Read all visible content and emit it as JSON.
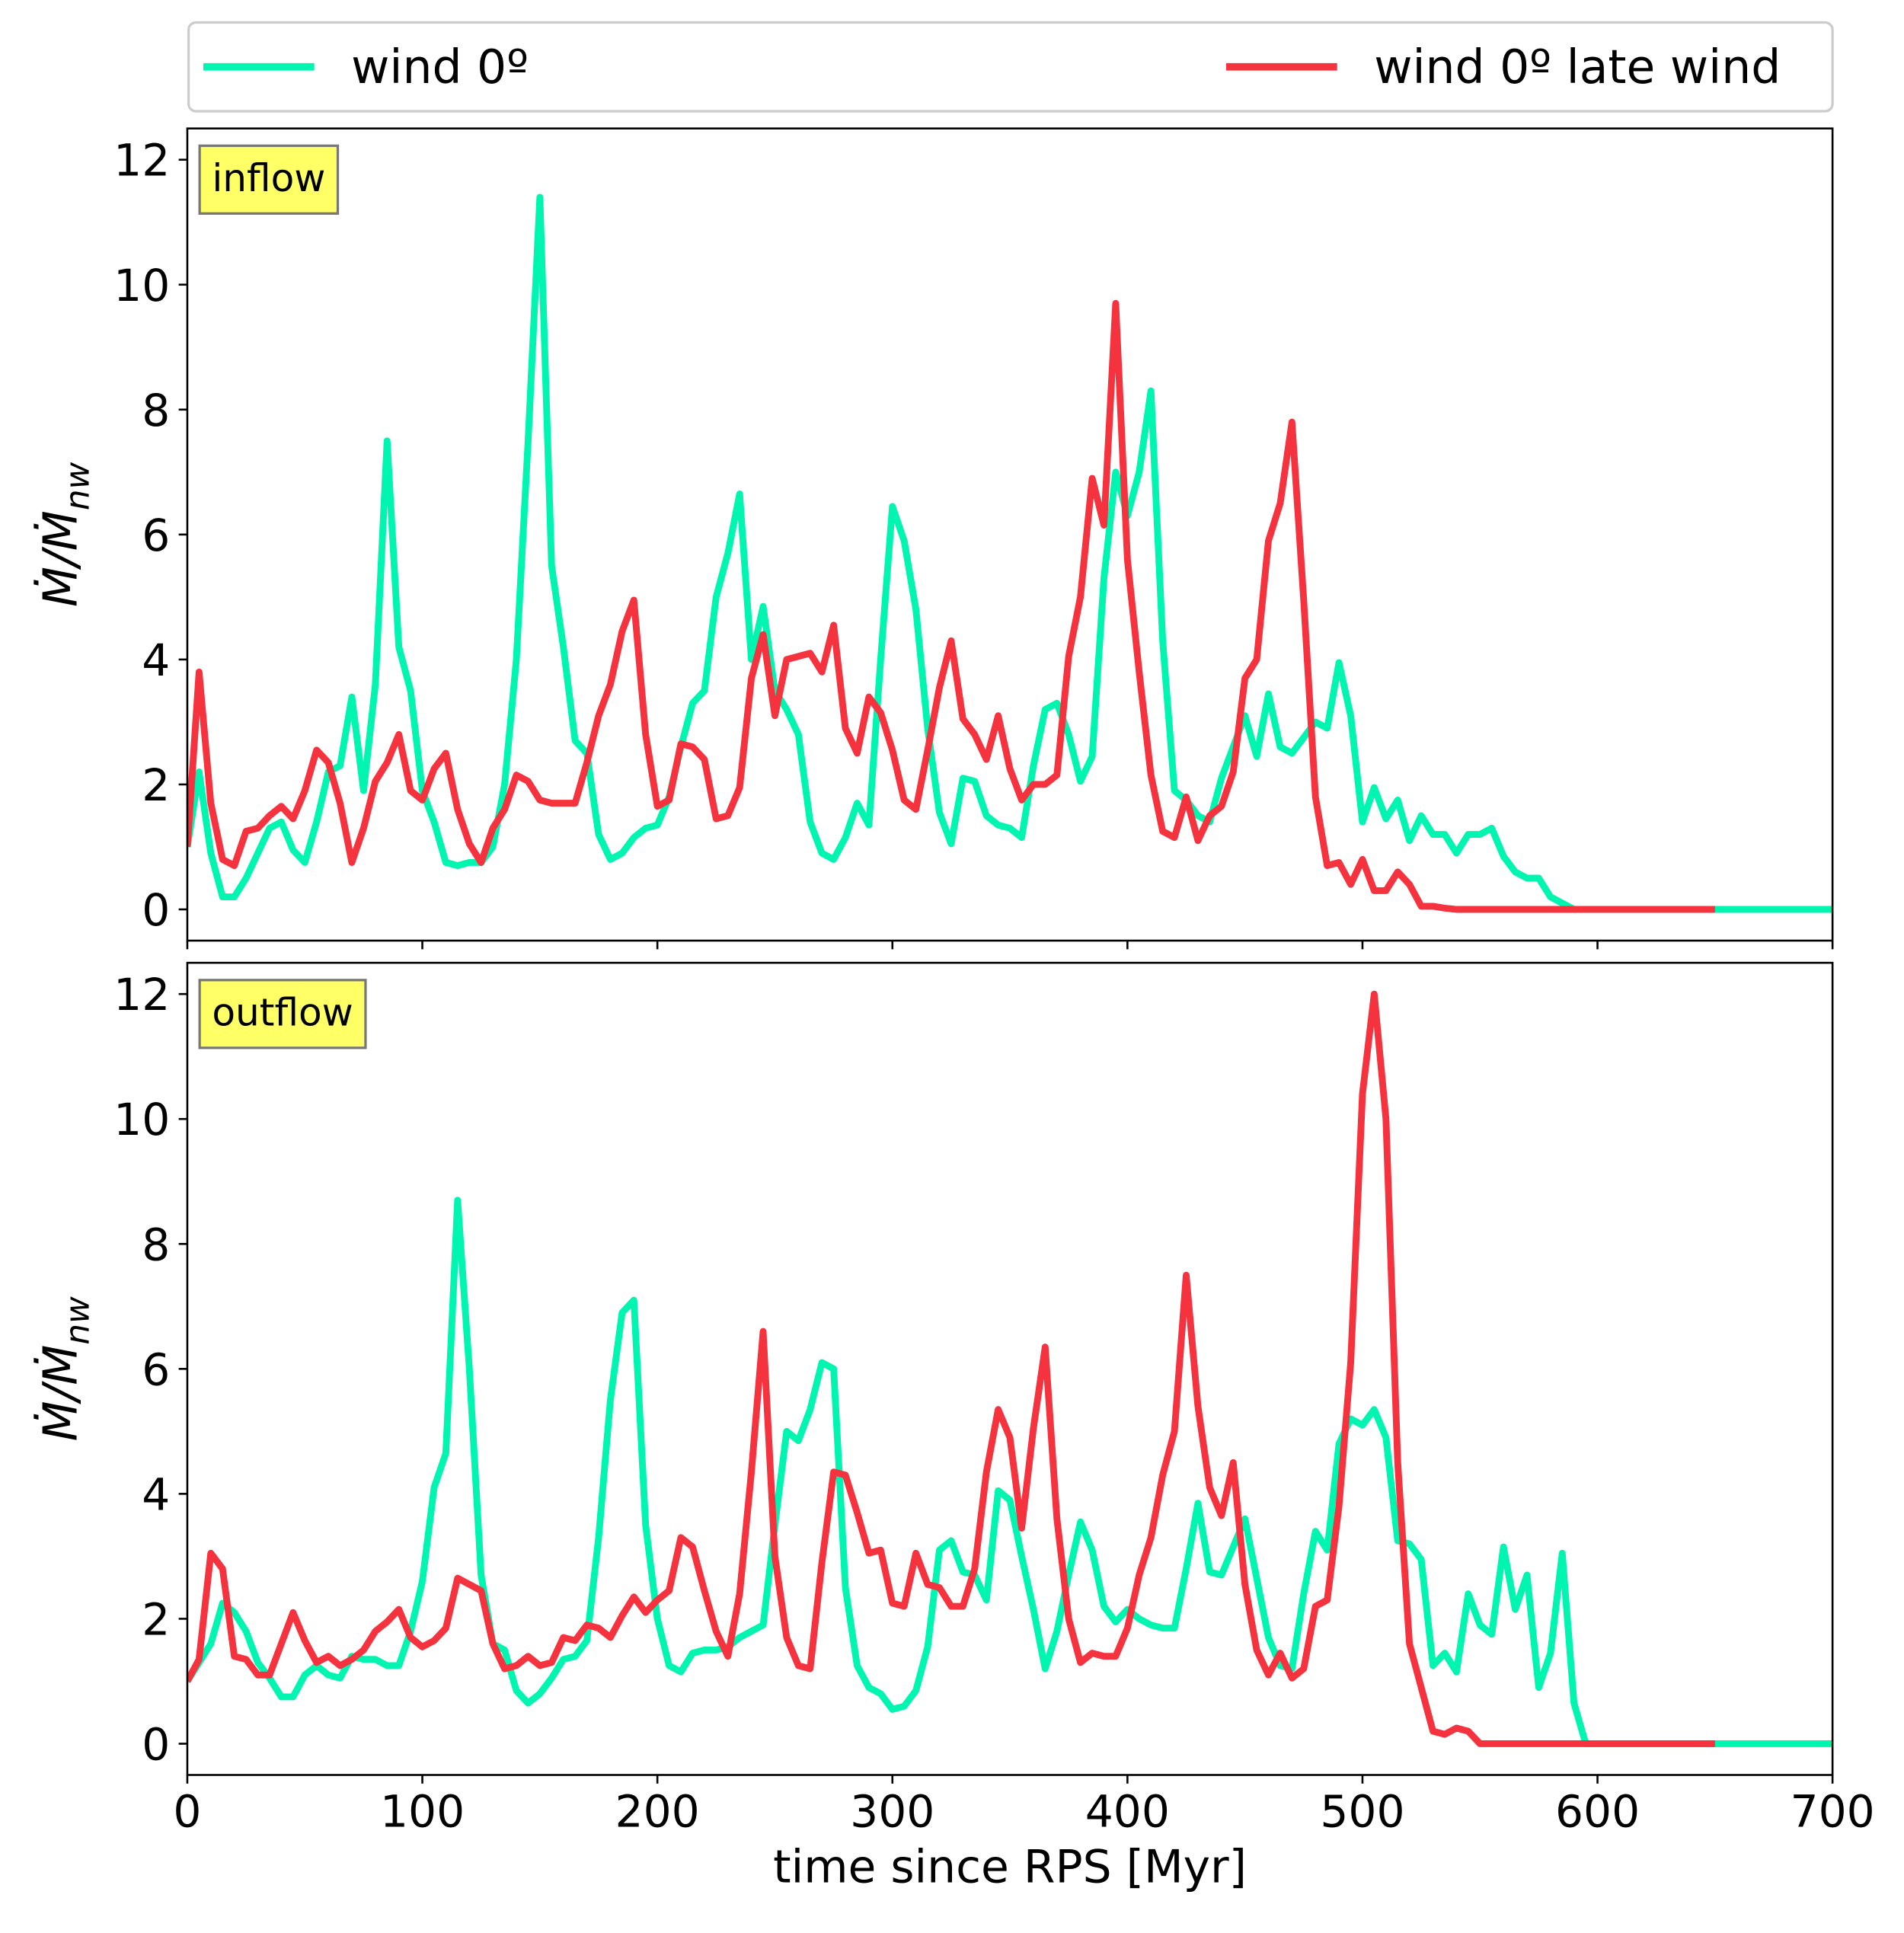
{
  "chart_data": [
    {
      "type": "line",
      "annotation": "inflow",
      "ylabel": {
        "main": "Ṁ/Ṁ",
        "sub": "nw"
      },
      "xlim": [
        0,
        700
      ],
      "xticks": [
        0,
        100,
        200,
        300,
        400,
        500,
        600,
        700
      ],
      "ylim": [
        -0.5,
        12.5
      ],
      "yticks": [
        0,
        2,
        4,
        6,
        8,
        10,
        12
      ],
      "legend": "top",
      "series": [
        {
          "name": "wind 0º",
          "color": "#00f5b0",
          "x": [
            0,
            5,
            10,
            15,
            20,
            25,
            30,
            35,
            40,
            45,
            50,
            55,
            60,
            65,
            70,
            75,
            80,
            85,
            90,
            95,
            100,
            105,
            110,
            115,
            120,
            125,
            130,
            135,
            140,
            145,
            150,
            155,
            160,
            165,
            170,
            175,
            180,
            185,
            190,
            195,
            200,
            205,
            210,
            215,
            220,
            225,
            230,
            235,
            240,
            245,
            250,
            255,
            260,
            265,
            270,
            275,
            280,
            285,
            290,
            295,
            300,
            305,
            310,
            315,
            320,
            325,
            330,
            335,
            340,
            345,
            350,
            355,
            360,
            365,
            370,
            375,
            380,
            385,
            390,
            395,
            400,
            405,
            410,
            415,
            420,
            425,
            430,
            435,
            440,
            445,
            450,
            455,
            460,
            465,
            470,
            475,
            480,
            485,
            490,
            495,
            500,
            505,
            510,
            515,
            520,
            525,
            530,
            535,
            540,
            545,
            550,
            555,
            560,
            565,
            570,
            575,
            580,
            585,
            590,
            700
          ],
          "values": [
            1.0,
            2.2,
            0.9,
            0.2,
            0.2,
            0.5,
            0.9,
            1.3,
            1.4,
            0.95,
            0.75,
            1.4,
            2.2,
            2.3,
            3.4,
            1.9,
            3.6,
            7.5,
            4.2,
            3.5,
            1.9,
            1.4,
            0.75,
            0.7,
            0.75,
            0.75,
            1.0,
            2.0,
            4.0,
            7.5,
            11.4,
            5.5,
            4.2,
            2.7,
            2.5,
            1.2,
            0.8,
            0.9,
            1.15,
            1.3,
            1.35,
            1.8,
            2.6,
            3.3,
            3.5,
            5.0,
            5.7,
            6.65,
            4.0,
            4.85,
            3.5,
            3.2,
            2.8,
            1.4,
            0.9,
            0.8,
            1.15,
            1.7,
            1.35,
            4.0,
            6.45,
            5.9,
            4.8,
            2.9,
            1.55,
            1.05,
            2.1,
            2.05,
            1.5,
            1.35,
            1.3,
            1.15,
            2.3,
            3.2,
            3.3,
            2.8,
            2.05,
            2.45,
            5.3,
            7.0,
            6.3,
            7.0,
            8.3,
            4.3,
            1.9,
            1.75,
            1.5,
            1.4,
            2.1,
            2.6,
            3.1,
            2.45,
            3.45,
            2.6,
            2.5,
            2.75,
            3.0,
            2.9,
            3.95,
            3.1,
            1.4,
            1.95,
            1.45,
            1.75,
            1.1,
            1.5,
            1.2,
            1.2,
            0.9,
            1.2,
            1.2,
            1.3,
            0.85,
            0.6,
            0.5,
            0.5,
            0.2,
            0.1,
            0.0,
            0.0
          ]
        },
        {
          "name": "wind 0º late wind",
          "color": "#f5333f",
          "x": [
            0,
            5,
            10,
            15,
            20,
            25,
            30,
            35,
            40,
            45,
            50,
            55,
            60,
            65,
            70,
            75,
            80,
            85,
            90,
            95,
            100,
            105,
            110,
            115,
            120,
            125,
            130,
            135,
            140,
            145,
            150,
            155,
            160,
            165,
            170,
            175,
            180,
            185,
            190,
            195,
            200,
            205,
            210,
            215,
            220,
            225,
            230,
            235,
            240,
            245,
            250,
            255,
            260,
            265,
            270,
            275,
            280,
            285,
            290,
            295,
            300,
            305,
            310,
            315,
            320,
            325,
            330,
            335,
            340,
            345,
            350,
            355,
            360,
            365,
            370,
            375,
            380,
            385,
            390,
            395,
            400,
            405,
            410,
            415,
            420,
            425,
            430,
            435,
            440,
            445,
            450,
            455,
            460,
            465,
            470,
            475,
            480,
            485,
            490,
            495,
            500,
            505,
            510,
            515,
            520,
            525,
            530,
            535,
            540,
            650
          ],
          "values": [
            1.0,
            3.8,
            1.7,
            0.8,
            0.7,
            1.25,
            1.3,
            1.5,
            1.65,
            1.45,
            1.9,
            2.55,
            2.35,
            1.7,
            0.75,
            1.3,
            2.05,
            2.35,
            2.8,
            1.9,
            1.75,
            2.25,
            2.5,
            1.6,
            1.05,
            0.75,
            1.3,
            1.6,
            2.15,
            2.05,
            1.75,
            1.7,
            1.7,
            1.7,
            2.35,
            3.1,
            3.6,
            4.45,
            4.95,
            2.8,
            1.65,
            1.75,
            2.65,
            2.6,
            2.4,
            1.45,
            1.5,
            1.95,
            3.7,
            4.4,
            3.1,
            4.0,
            4.05,
            4.1,
            3.8,
            4.55,
            2.9,
            2.5,
            3.4,
            3.15,
            2.55,
            1.75,
            1.6,
            2.55,
            3.55,
            4.3,
            3.05,
            2.8,
            2.4,
            3.1,
            2.25,
            1.75,
            2.0,
            2.0,
            2.15,
            4.05,
            5.0,
            6.9,
            6.15,
            9.7,
            5.6,
            3.8,
            2.15,
            1.25,
            1.15,
            1.8,
            1.1,
            1.5,
            1.65,
            2.2,
            3.7,
            4.0,
            5.9,
            6.5,
            7.8,
            4.95,
            1.8,
            0.7,
            0.75,
            0.4,
            0.8,
            0.3,
            0.3,
            0.6,
            0.4,
            0.05,
            0.05,
            0.02,
            0.0,
            0.0
          ]
        }
      ]
    },
    {
      "type": "line",
      "annotation": "outflow",
      "ylabel": {
        "main": "Ṁ/Ṁ",
        "sub": "nw"
      },
      "xlabel": "time since RPS [Myr]",
      "xlim": [
        0,
        700
      ],
      "xticks": [
        0,
        100,
        200,
        300,
        400,
        500,
        600,
        700
      ],
      "ylim": [
        -0.5,
        12.5
      ],
      "yticks": [
        0,
        2,
        4,
        6,
        8,
        10,
        12
      ],
      "series": [
        {
          "color": "#00f5b0",
          "x": [
            0,
            5,
            10,
            15,
            20,
            25,
            30,
            35,
            40,
            45,
            50,
            55,
            60,
            65,
            70,
            75,
            80,
            85,
            90,
            95,
            100,
            105,
            110,
            115,
            120,
            125,
            130,
            135,
            140,
            145,
            150,
            155,
            160,
            165,
            170,
            175,
            180,
            185,
            190,
            195,
            200,
            205,
            210,
            215,
            220,
            225,
            230,
            235,
            240,
            245,
            250,
            255,
            260,
            265,
            270,
            275,
            280,
            285,
            290,
            295,
            300,
            305,
            310,
            315,
            320,
            325,
            330,
            335,
            340,
            345,
            350,
            355,
            360,
            365,
            370,
            375,
            380,
            385,
            390,
            395,
            400,
            405,
            410,
            415,
            420,
            425,
            430,
            435,
            440,
            445,
            450,
            455,
            460,
            465,
            470,
            475,
            480,
            485,
            490,
            495,
            500,
            505,
            510,
            515,
            520,
            525,
            530,
            535,
            540,
            545,
            550,
            555,
            560,
            565,
            570,
            575,
            580,
            585,
            590,
            595,
            700
          ],
          "values": [
            1.0,
            1.3,
            1.6,
            2.25,
            2.1,
            1.8,
            1.3,
            1.05,
            0.75,
            0.75,
            1.1,
            1.25,
            1.1,
            1.05,
            1.4,
            1.35,
            1.35,
            1.25,
            1.25,
            1.8,
            2.6,
            4.1,
            4.65,
            8.7,
            6.0,
            2.7,
            1.6,
            1.5,
            0.85,
            0.65,
            0.8,
            1.05,
            1.35,
            1.4,
            1.65,
            3.3,
            5.5,
            6.9,
            7.1,
            3.5,
            2.0,
            1.25,
            1.15,
            1.45,
            1.5,
            1.5,
            1.55,
            1.7,
            1.8,
            1.9,
            3.5,
            5.0,
            4.85,
            5.35,
            6.1,
            6.0,
            2.5,
            1.25,
            0.9,
            0.8,
            0.55,
            0.6,
            0.85,
            1.55,
            3.1,
            3.25,
            2.75,
            2.7,
            2.3,
            4.05,
            3.9,
            3.0,
            2.15,
            1.2,
            1.8,
            2.7,
            3.55,
            3.1,
            2.2,
            1.95,
            2.15,
            2.0,
            1.9,
            1.85,
            1.85,
            2.8,
            3.85,
            2.75,
            2.7,
            3.15,
            3.6,
            2.65,
            1.7,
            1.25,
            1.2,
            2.4,
            3.4,
            3.1,
            4.8,
            5.2,
            5.1,
            5.35,
            4.9,
            3.25,
            3.2,
            2.95,
            1.25,
            1.45,
            1.15,
            2.4,
            1.9,
            1.75,
            3.15,
            2.15,
            2.7,
            0.9,
            1.45,
            3.05,
            0.65,
            0.0,
            0.0
          ]
        },
        {
          "color": "#f5333f",
          "x": [
            0,
            5,
            10,
            15,
            20,
            25,
            30,
            35,
            40,
            45,
            50,
            55,
            60,
            65,
            70,
            75,
            80,
            85,
            90,
            95,
            100,
            105,
            110,
            115,
            120,
            125,
            130,
            135,
            140,
            145,
            150,
            155,
            160,
            165,
            170,
            175,
            180,
            185,
            190,
            195,
            200,
            205,
            210,
            215,
            220,
            225,
            230,
            235,
            240,
            245,
            250,
            255,
            260,
            265,
            270,
            275,
            280,
            285,
            290,
            295,
            300,
            305,
            310,
            315,
            320,
            325,
            330,
            335,
            340,
            345,
            350,
            355,
            360,
            365,
            370,
            375,
            380,
            385,
            390,
            395,
            400,
            405,
            410,
            415,
            420,
            425,
            430,
            435,
            440,
            445,
            450,
            455,
            460,
            465,
            470,
            475,
            480,
            485,
            490,
            495,
            500,
            505,
            510,
            515,
            520,
            525,
            530,
            535,
            540,
            545,
            550,
            650
          ],
          "values": [
            1.0,
            1.35,
            3.05,
            2.8,
            1.4,
            1.35,
            1.1,
            1.1,
            1.6,
            2.1,
            1.65,
            1.3,
            1.4,
            1.25,
            1.35,
            1.5,
            1.8,
            1.95,
            2.15,
            1.7,
            1.55,
            1.65,
            1.85,
            2.65,
            2.55,
            2.45,
            1.6,
            1.2,
            1.25,
            1.4,
            1.25,
            1.3,
            1.7,
            1.65,
            1.9,
            1.85,
            1.7,
            2.05,
            2.35,
            2.1,
            2.3,
            2.45,
            3.3,
            3.15,
            2.45,
            1.8,
            1.4,
            2.4,
            4.35,
            6.6,
            3.0,
            1.7,
            1.25,
            1.2,
            2.9,
            4.35,
            4.3,
            3.7,
            3.05,
            3.1,
            2.25,
            2.2,
            3.05,
            2.55,
            2.5,
            2.2,
            2.2,
            2.8,
            4.35,
            5.35,
            4.9,
            3.45,
            5.05,
            6.35,
            3.6,
            2.0,
            1.3,
            1.45,
            1.4,
            1.4,
            1.85,
            2.7,
            3.3,
            4.3,
            5.0,
            7.5,
            5.4,
            4.1,
            3.65,
            4.5,
            2.55,
            1.5,
            1.1,
            1.45,
            1.05,
            1.2,
            2.2,
            2.3,
            3.8,
            6.1,
            10.4,
            12.0,
            10.0,
            4.5,
            1.6,
            0.9,
            0.2,
            0.15,
            0.25,
            0.2,
            0.0,
            0.0
          ]
        }
      ]
    }
  ]
}
